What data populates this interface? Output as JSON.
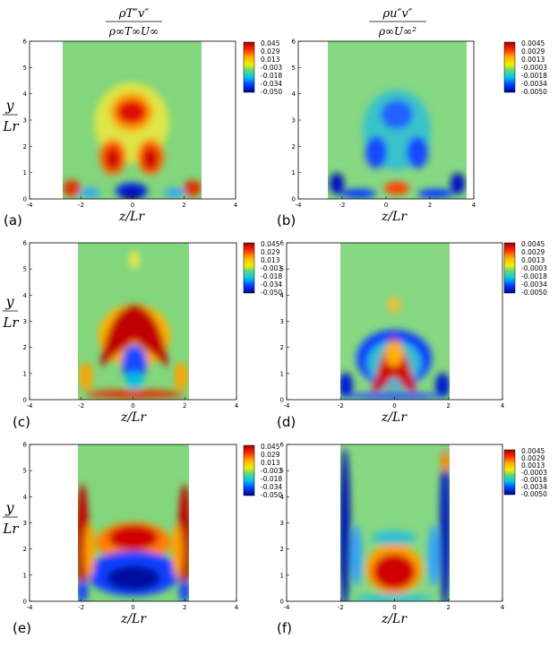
{
  "column_headers": [
    {
      "numerator": "ρT″v″",
      "denominator": "ρ∞T∞U∞"
    },
    {
      "numerator": "ρu″v″",
      "denominator": "ρ∞U∞²"
    }
  ],
  "xlabel": "z/Lr",
  "ylabel_num": "y",
  "ylabel_den": "Lr",
  "x_ticks": [
    "-4",
    "-2",
    "0",
    "2",
    "4"
  ],
  "y_ticks": [
    "0",
    "1",
    "2",
    "3",
    "4",
    "5",
    "6"
  ],
  "colorbar_left": [
    "0.045",
    "0.029",
    "0.013",
    "-0.003",
    "-0.018",
    "-0.034",
    "-0.050"
  ],
  "colorbar_right": [
    "0.0045",
    "0.0029",
    "0.0013",
    "-0.0003",
    "-0.0018",
    "-0.0034",
    "-0.0050"
  ],
  "panel_labels": [
    "(a)",
    "(b)",
    "(c)",
    "(d)",
    "(e)",
    "(f)"
  ],
  "colors": {
    "background_field": "#7fd67a",
    "high": "#b40000",
    "low": "#0000a8"
  }
}
